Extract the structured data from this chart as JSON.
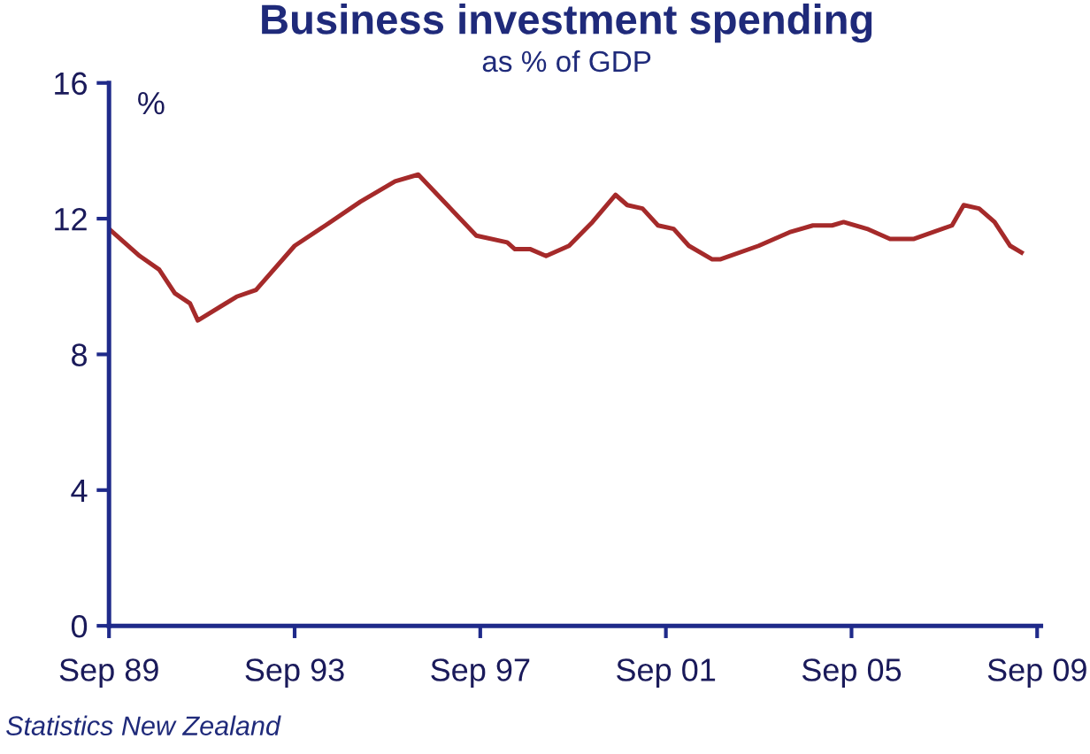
{
  "chart_data": {
    "type": "line",
    "title": "Business investment spending",
    "subtitle": "as % of GDP",
    "ylabel": "%",
    "annotations": [
      "Statistics New Zealand"
    ],
    "x": [
      "1989-09",
      "1990-05",
      "1990-10",
      "1991-02",
      "1991-06",
      "1991-08",
      "1992-06",
      "1992-11",
      "1993-09",
      "1994-05",
      "1995-02",
      "1995-11",
      "1996-05",
      "1997-08",
      "1998-04",
      "1998-06",
      "1998-10",
      "1999-02",
      "1999-08",
      "2000-02",
      "2000-08",
      "2000-11",
      "2001-03",
      "2001-07",
      "2001-11",
      "2002-03",
      "2002-09",
      "2002-11",
      "2003-09",
      "2004-05",
      "2004-11",
      "2005-04",
      "2005-07",
      "2006-01",
      "2006-07",
      "2007-01",
      "2007-11",
      "2008-02",
      "2008-06",
      "2008-10",
      "2009-02",
      "2009-05"
    ],
    "series": [
      {
        "color": "#a52a2a",
        "values": [
          11.7,
          10.9,
          10.5,
          9.8,
          9.5,
          9.0,
          9.7,
          9.9,
          11.2,
          11.8,
          12.5,
          13.1,
          13.3,
          11.5,
          11.3,
          11.1,
          11.1,
          10.9,
          11.2,
          11.9,
          12.7,
          12.4,
          12.3,
          11.8,
          11.7,
          11.2,
          10.8,
          10.8,
          11.2,
          11.6,
          11.8,
          11.8,
          11.9,
          11.7,
          11.4,
          11.4,
          11.8,
          12.4,
          12.3,
          11.9,
          11.2,
          11.0
        ]
      }
    ],
    "xlim": [
      "1989-09",
      "2009-10"
    ],
    "xticks": [
      {
        "value": "1989-09",
        "label": "Sep 89"
      },
      {
        "value": "1993-09",
        "label": "Sep 93"
      },
      {
        "value": "1997-09",
        "label": "Sep 97"
      },
      {
        "value": "2001-09",
        "label": "Sep 01"
      },
      {
        "value": "2005-09",
        "label": "Sep 05"
      },
      {
        "value": "2009-09",
        "label": "Sep 09"
      }
    ],
    "ylim": [
      0,
      16
    ],
    "yticks": [
      0,
      4,
      8,
      12,
      16
    ],
    "grid": false,
    "legend": false,
    "marker": "none",
    "line_style": "solid"
  }
}
